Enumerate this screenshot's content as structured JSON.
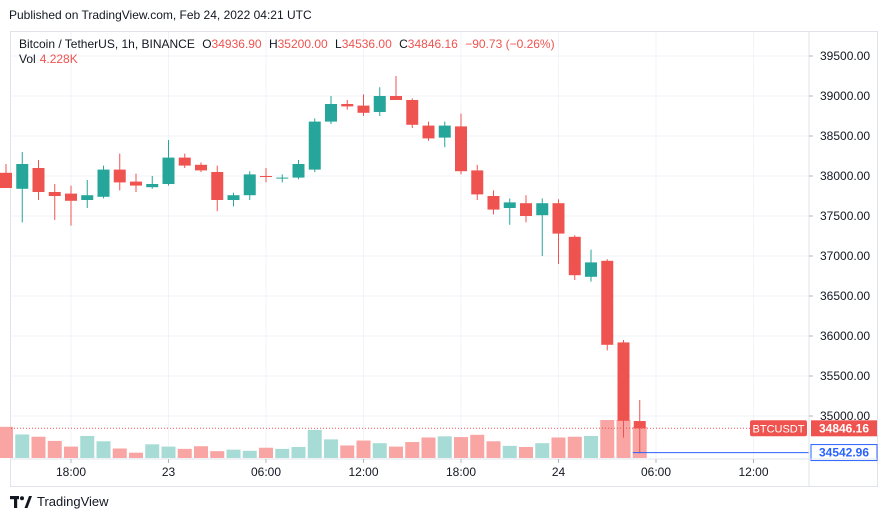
{
  "header": {
    "published": "Published on TradingView.com, Feb 24, 2022 04:21 UTC"
  },
  "legend": {
    "symbol": "Bitcoin / TetherUS, 1h, BINANCE",
    "open_label": "O",
    "open": "34936.90",
    "high_label": "H",
    "high": "35200.00",
    "low_label": "L",
    "low": "34536.00",
    "close_label": "C",
    "close": "34846.16",
    "change": "−90.73 (−0.26%)",
    "vol_label": "Vol",
    "vol": "4.228K"
  },
  "footer": {
    "brand": "TradingView"
  },
  "colors": {
    "up": "#26a69a",
    "down": "#ef5350",
    "up_vol": "#a7dcd6",
    "down_vol": "#f8a5a3",
    "grid": "#f0f3fa",
    "line": "#2962ff"
  },
  "chart_data": {
    "type": "candlestick",
    "y_ticks": [
      "39500.00",
      "39000.00",
      "38500.00",
      "38000.00",
      "37500.00",
      "37000.00",
      "36500.00",
      "36000.00",
      "35500.00",
      "35000.00"
    ],
    "ylim": [
      34475,
      39800
    ],
    "x_ticks": [
      {
        "label": "18:00",
        "index": 4
      },
      {
        "label": "23",
        "index": 10
      },
      {
        "label": "06:00",
        "index": 16
      },
      {
        "label": "12:00",
        "index": 22
      },
      {
        "label": "18:00",
        "index": 28
      },
      {
        "label": "24",
        "index": 34
      },
      {
        "label": "06:00",
        "index": 40
      },
      {
        "label": "12:00",
        "index": 46
      }
    ],
    "candles": [
      {
        "o": 38040,
        "h": 38150,
        "l": 37850,
        "c": 37850
      },
      {
        "o": 37840,
        "h": 38300,
        "l": 37420,
        "c": 38150
      },
      {
        "o": 38100,
        "h": 38200,
        "l": 37700,
        "c": 37800
      },
      {
        "o": 37800,
        "h": 37900,
        "l": 37450,
        "c": 37750
      },
      {
        "o": 37780,
        "h": 37880,
        "l": 37380,
        "c": 37690
      },
      {
        "o": 37700,
        "h": 37950,
        "l": 37600,
        "c": 37760
      },
      {
        "o": 37740,
        "h": 38130,
        "l": 37720,
        "c": 38080
      },
      {
        "o": 38080,
        "h": 38280,
        "l": 37820,
        "c": 37920
      },
      {
        "o": 37930,
        "h": 38030,
        "l": 37800,
        "c": 37880
      },
      {
        "o": 37860,
        "h": 38000,
        "l": 37840,
        "c": 37900
      },
      {
        "o": 37900,
        "h": 38450,
        "l": 37880,
        "c": 38230
      },
      {
        "o": 38230,
        "h": 38280,
        "l": 38100,
        "c": 38130
      },
      {
        "o": 38140,
        "h": 38170,
        "l": 38050,
        "c": 38070
      },
      {
        "o": 38050,
        "h": 38130,
        "l": 37560,
        "c": 37700
      },
      {
        "o": 37700,
        "h": 37790,
        "l": 37620,
        "c": 37760
      },
      {
        "o": 37760,
        "h": 38060,
        "l": 37700,
        "c": 38020
      },
      {
        "o": 38000,
        "h": 38100,
        "l": 37920,
        "c": 37990
      },
      {
        "o": 37970,
        "h": 38020,
        "l": 37920,
        "c": 37980
      },
      {
        "o": 37980,
        "h": 38200,
        "l": 37960,
        "c": 38150
      },
      {
        "o": 38080,
        "h": 38720,
        "l": 38050,
        "c": 38680
      },
      {
        "o": 38680,
        "h": 39000,
        "l": 38650,
        "c": 38900
      },
      {
        "o": 38900,
        "h": 38950,
        "l": 38830,
        "c": 38870
      },
      {
        "o": 38880,
        "h": 39020,
        "l": 38750,
        "c": 38790
      },
      {
        "o": 38800,
        "h": 39110,
        "l": 38750,
        "c": 39000
      },
      {
        "o": 39000,
        "h": 39250,
        "l": 38950,
        "c": 38950
      },
      {
        "o": 38950,
        "h": 38970,
        "l": 38600,
        "c": 38640
      },
      {
        "o": 38630,
        "h": 38680,
        "l": 38440,
        "c": 38470
      },
      {
        "o": 38480,
        "h": 38680,
        "l": 38360,
        "c": 38630
      },
      {
        "o": 38620,
        "h": 38780,
        "l": 38020,
        "c": 38060
      },
      {
        "o": 38070,
        "h": 38140,
        "l": 37700,
        "c": 37770
      },
      {
        "o": 37750,
        "h": 37820,
        "l": 37520,
        "c": 37580
      },
      {
        "o": 37600,
        "h": 37720,
        "l": 37390,
        "c": 37670
      },
      {
        "o": 37660,
        "h": 37760,
        "l": 37420,
        "c": 37500
      },
      {
        "o": 37510,
        "h": 37720,
        "l": 37000,
        "c": 37660
      },
      {
        "o": 37660,
        "h": 37710,
        "l": 36900,
        "c": 37280
      },
      {
        "o": 37240,
        "h": 37260,
        "l": 36700,
        "c": 36760
      },
      {
        "o": 36740,
        "h": 37080,
        "l": 36680,
        "c": 36920
      },
      {
        "o": 36940,
        "h": 36960,
        "l": 35820,
        "c": 35890
      },
      {
        "o": 35920,
        "h": 35950,
        "l": 34730,
        "c": 34940
      },
      {
        "o": 34936.9,
        "h": 35200,
        "l": 34536,
        "c": 34846.16
      }
    ],
    "volumes": [
      0.82,
      0.62,
      0.56,
      0.45,
      0.3,
      0.58,
      0.44,
      0.25,
      0.14,
      0.36,
      0.3,
      0.24,
      0.31,
      0.18,
      0.22,
      0.19,
      0.27,
      0.24,
      0.29,
      0.74,
      0.49,
      0.33,
      0.46,
      0.39,
      0.3,
      0.42,
      0.54,
      0.57,
      0.55,
      0.61,
      0.44,
      0.32,
      0.29,
      0.39,
      0.54,
      0.56,
      0.58,
      1.0,
      1.0,
      0.82
    ],
    "current_price_label": {
      "text": "BTCUSDT",
      "value": "34846.16",
      "price": 34846.16
    },
    "line_label": {
      "value": "34542.96",
      "price": 34542.96
    }
  }
}
